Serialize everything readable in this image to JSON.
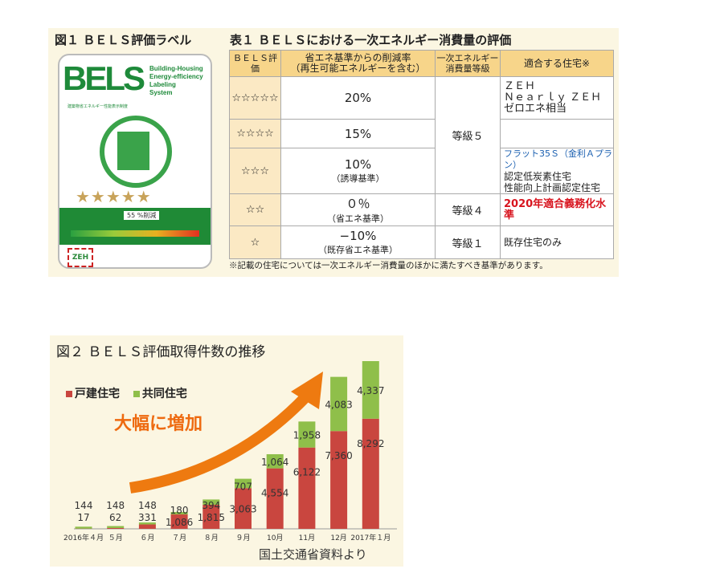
{
  "figure1": {
    "title": "図１ ＢＥＬＳ評価ラベル",
    "logo_text": "BELS",
    "logo_sub": [
      "Building-Housing",
      "Energy-efficiency",
      "Labeling",
      "System"
    ],
    "logo_jp": "建築物省エネルギー性能表示制度",
    "reduction": "55 %削減",
    "zeh": "ZEH",
    "stars_shown": 5
  },
  "table1": {
    "title": "表１ ＢＥＬＳにおける一次エネルギー消費量の評価",
    "headers": [
      "ＢＥＬＳ評価",
      "省エネ基準からの削減率",
      "（再生可能エネルギーを含む）",
      "一次エネルギー",
      "消費量等級",
      "適合する住宅※"
    ],
    "rows": [
      {
        "rating": "☆☆☆☆☆",
        "rate": "20%",
        "note": ""
      },
      {
        "rating": "☆☆☆☆",
        "rate": "15%",
        "note": ""
      },
      {
        "rating": "☆☆☆",
        "rate": "10%",
        "note": "（誘導基準）"
      },
      {
        "rating": "☆☆",
        "rate": "０％",
        "note": "（省エネ基準）"
      },
      {
        "rating": "☆",
        "rate": "−10%",
        "note": "（既存省エネ基準）"
      }
    ],
    "grades": [
      "等級５",
      "等級４",
      "等級１"
    ],
    "housing": {
      "zeh": [
        "ＺＥＨ",
        "Ｎｅａｒｌｙ ＺＥＨ",
        "ゼロエネ相当"
      ],
      "flat": "フラット35Ｓ（金利Ａプラン）",
      "lowcarbon": "認定低炭素住宅",
      "perf": "性能向上計画認定住宅",
      "mandatory": "2020年適合義務化水準",
      "existing": "既存住宅のみ"
    },
    "footnote": "※記載の住宅については一次エネルギー消費量のほかに満たすべき基準があります。"
  },
  "figure2": {
    "title": "図２ ＢＥＬＳ評価取得件数の推移",
    "callout": "大幅に増加",
    "source": "国土交通省資料より"
  },
  "chart_data": {
    "type": "bar",
    "stacked": true,
    "categories": [
      "2016年４月",
      "５月",
      "６月",
      "７月",
      "８月",
      "９月",
      "10月",
      "11月",
      "12月",
      "2017年１月"
    ],
    "series": [
      {
        "name": "戸建住宅",
        "color": "#c9463f",
        "values": [
          17,
          62,
          331,
          1086,
          1815,
          3063,
          4554,
          6122,
          7360,
          8292
        ],
        "labels": [
          "17",
          "62",
          "331",
          "1,086",
          "1,815",
          "3,063",
          "4,554",
          "6,122",
          "7,360",
          "8,292"
        ]
      },
      {
        "name": "共同住宅",
        "color": "#8fbf4a",
        "values": [
          144,
          148,
          148,
          180,
          394,
          707,
          1064,
          1958,
          4083,
          4337
        ],
        "labels": [
          "144",
          "148",
          "148",
          "180",
          "394",
          "707",
          "1,064",
          "1,958",
          "4,083",
          "4,337"
        ]
      }
    ],
    "legend": "top-left",
    "grid": false
  }
}
